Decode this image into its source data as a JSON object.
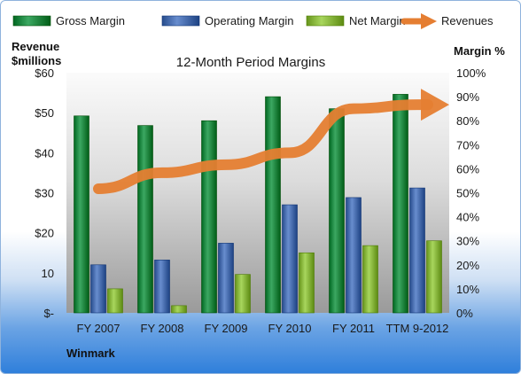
{
  "chart_data": {
    "type": "bar",
    "title": "12-Month Period Margins",
    "categories": [
      "FY 2007",
      "FY 2008",
      "FY 2009",
      "FY 2010",
      "FY 2011",
      "TTM 9-2012"
    ],
    "series": [
      {
        "name": "Gross Margin",
        "axis": "right",
        "color": "#1e8a44",
        "values": [
          82,
          78,
          80,
          90,
          85,
          91
        ]
      },
      {
        "name": "Operating Margin",
        "axis": "right",
        "color": "#4a6fb0",
        "values": [
          20,
          22,
          29,
          45,
          48,
          52
        ]
      },
      {
        "name": "Net Margin",
        "axis": "right",
        "color": "#8ab83f",
        "values": [
          10,
          3,
          16,
          25,
          28,
          30
        ]
      },
      {
        "name": "Revenues",
        "axis": "left",
        "type": "arrow-line",
        "color": "#e57e32",
        "values": [
          31,
          35,
          37,
          40,
          51,
          52
        ]
      }
    ],
    "y_left": {
      "label_line1": "Revenue",
      "label_line2": "$millions",
      "ticks": [
        "$-",
        "10",
        "$20",
        "$30",
        "$40",
        "$50",
        "$60"
      ],
      "ylim": [
        0,
        60
      ]
    },
    "y_right": {
      "label": "Margin %",
      "ticks": [
        "0%",
        "10%",
        "20%",
        "30%",
        "40%",
        "50%",
        "60%",
        "70%",
        "80%",
        "90%",
        "100%"
      ],
      "ylim": [
        0,
        100
      ]
    },
    "legend_position": "top",
    "grid": false
  },
  "footer": {
    "company": "Winmark"
  }
}
